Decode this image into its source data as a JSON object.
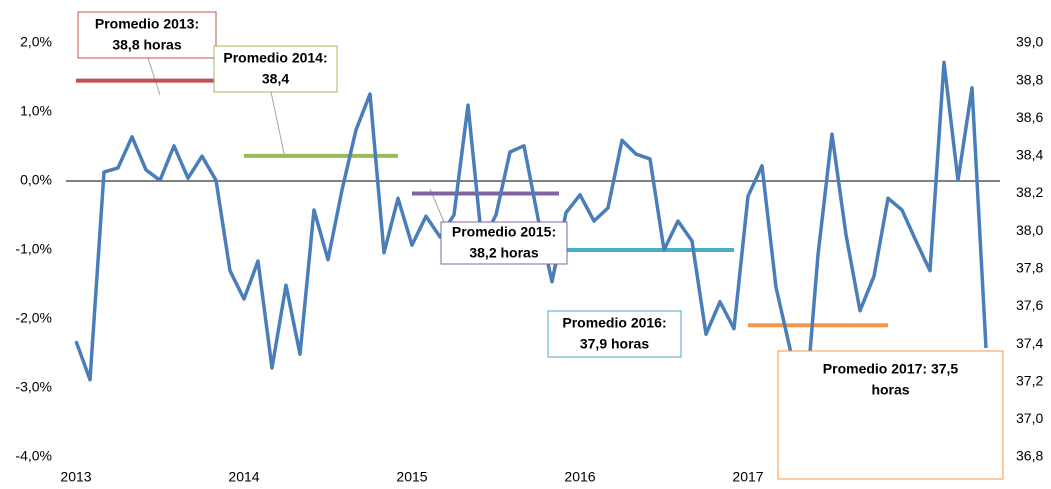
{
  "chart_data": {
    "type": "line",
    "categories": [
      "2013",
      null,
      null,
      null,
      null,
      null,
      null,
      null,
      null,
      null,
      null,
      null,
      "2014",
      null,
      null,
      null,
      null,
      null,
      null,
      null,
      null,
      null,
      null,
      null,
      "2015",
      null,
      null,
      null,
      null,
      null,
      null,
      null,
      null,
      null,
      null,
      null,
      "2016",
      null,
      null,
      null,
      null,
      null,
      null,
      null,
      null,
      null,
      null,
      null,
      "2017",
      null,
      null,
      null,
      null,
      null,
      null,
      null,
      null,
      null,
      null,
      null,
      null,
      null,
      null,
      null,
      null,
      null
    ],
    "series": [
      {
        "color": "#4a7ebb",
        "values": [
          -2.32,
          -2.88,
          0.13,
          0.19,
          0.64,
          0.16,
          0.01,
          0.51,
          0.04,
          0.36,
          0.01,
          -1.3,
          -1.71,
          -1.16,
          -2.71,
          -1.51,
          -2.51,
          -0.42,
          -1.14,
          -0.13,
          0.74,
          1.26,
          -1.04,
          -0.25,
          -0.93,
          -0.51,
          -0.81,
          -0.49,
          1.1,
          -0.9,
          -0.49,
          0.42,
          0.51,
          -0.54,
          -1.46,
          -0.46,
          -0.2,
          -0.58,
          -0.39,
          0.59,
          0.39,
          0.32,
          -1.0,
          -0.58,
          -0.87,
          -2.22,
          -1.75,
          -2.14,
          -0.22,
          0.22,
          -1.54,
          -2.43,
          -3.54,
          -1.07,
          0.68,
          -0.78,
          -1.88,
          -1.38,
          -0.25,
          -0.42,
          -0.87,
          -1.3,
          1.72,
          0.01,
          1.35,
          -2.42
        ]
      }
    ],
    "ylim": [
      -4,
      2.2
    ],
    "yticks": [
      {
        "value": 2,
        "label": "2,0%"
      },
      {
        "value": 1,
        "label": "1,0%"
      },
      {
        "value": 0,
        "label": "0,0%"
      },
      {
        "value": -1,
        "label": "-1,0%"
      },
      {
        "value": -2,
        "label": "-2,0%"
      },
      {
        "value": -3,
        "label": "-3,0%"
      },
      {
        "value": -4,
        "label": "-4,0%"
      }
    ],
    "y2lim": [
      36.8,
      39.0
    ],
    "y2ticks": [
      {
        "value": 39,
        "label": "39,0"
      },
      {
        "value": 38.8,
        "label": "38,8"
      },
      {
        "value": 38.6,
        "label": "38,6"
      },
      {
        "value": 38.4,
        "label": "38,4"
      },
      {
        "value": 38.2,
        "label": "38,2"
      },
      {
        "value": 38,
        "label": "38,0"
      },
      {
        "value": 37.8,
        "label": "37,8"
      },
      {
        "value": 37.6,
        "label": "37,6"
      },
      {
        "value": 37.4,
        "label": "37,4"
      },
      {
        "value": 37.2,
        "label": "37,2"
      },
      {
        "value": 37,
        "label": "37,0"
      },
      {
        "value": 36.8,
        "label": "36,8"
      }
    ],
    "averages": [
      {
        "axis": "y2",
        "value": 38.8,
        "from": 0,
        "to": 11,
        "color": "#c0504d",
        "text_color": "#c00000",
        "lines": [
          "Promedio 2013:",
          "38,8 horas"
        ]
      },
      {
        "axis": "y2",
        "value": 38.4,
        "from": 12,
        "to": 23,
        "color": "#9bbb59",
        "text_color": "#9bbb59",
        "lines": [
          "Promedio 2014:",
          "38,4"
        ]
      },
      {
        "axis": "y2",
        "value": 38.2,
        "from": 24,
        "to": 34.5,
        "color": "#8064a2",
        "text_color": "#7030a0",
        "lines": [
          "Promedio 2015:",
          "38,2 horas"
        ]
      },
      {
        "axis": "y2",
        "value": 37.9,
        "from": 35,
        "to": 47,
        "color": "#4bacc6",
        "text_color": "#4a7ebb",
        "lines": [
          "Promedio 2016:",
          "37,9 horas"
        ]
      },
      {
        "axis": "y2",
        "value": 37.5,
        "from": 48,
        "to": 58,
        "color": "#f79646",
        "text_color": "#f79646",
        "lines": [
          "Promedio 2017:  37,5",
          "horas"
        ]
      }
    ]
  }
}
